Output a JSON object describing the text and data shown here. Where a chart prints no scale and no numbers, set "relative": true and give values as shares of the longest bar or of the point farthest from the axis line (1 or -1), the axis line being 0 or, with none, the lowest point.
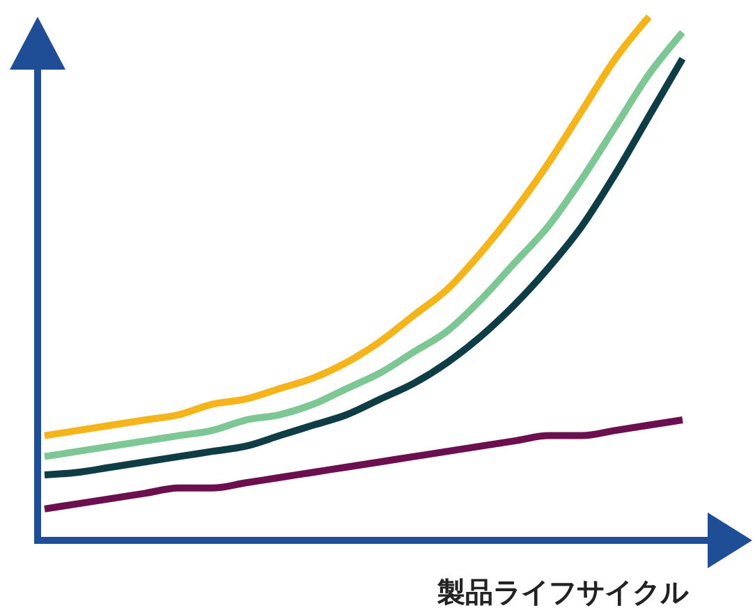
{
  "chart_data": {
    "type": "line",
    "relative": true,
    "xlabel": "製品ライフサイクル",
    "categories": [
      null,
      null,
      null,
      null,
      null,
      null,
      null,
      null,
      null,
      null,
      null,
      null,
      null,
      null,
      null,
      null,
      null,
      null,
      null,
      null
    ],
    "series": [
      {
        "color": "#f5b41a",
        "values": [
          0.2,
          0.21,
          0.22,
          0.23,
          0.24,
          0.26,
          0.27,
          0.29,
          0.31,
          0.34,
          0.38,
          0.43,
          0.48,
          0.55,
          0.63,
          0.72,
          0.82,
          0.92,
          1,
          null
        ]
      },
      {
        "color": "#7dc795",
        "values": [
          0.16,
          0.17,
          0.18,
          0.19,
          0.2,
          0.21,
          0.23,
          0.24,
          0.26,
          0.29,
          0.32,
          0.36,
          0.4,
          0.46,
          0.53,
          0.6,
          0.69,
          0.79,
          0.89,
          0.97
        ]
      },
      {
        "color": "#0f3d46",
        "values": [
          0.125,
          0.13,
          0.14,
          0.15,
          0.16,
          0.17,
          0.18,
          0.2,
          0.22,
          0.24,
          0.27,
          0.3,
          0.34,
          0.39,
          0.45,
          0.52,
          0.6,
          0.7,
          0.81,
          0.92
        ]
      },
      {
        "color": "#6b0f4f",
        "values": [
          0.06,
          0.07,
          0.08,
          0.09,
          0.1,
          0.1,
          0.11,
          0.12,
          0.13,
          0.14,
          0.15,
          0.16,
          0.17,
          0.18,
          0.19,
          0.2,
          0.2,
          0.21,
          0.22,
          0.23
        ]
      }
    ]
  }
}
